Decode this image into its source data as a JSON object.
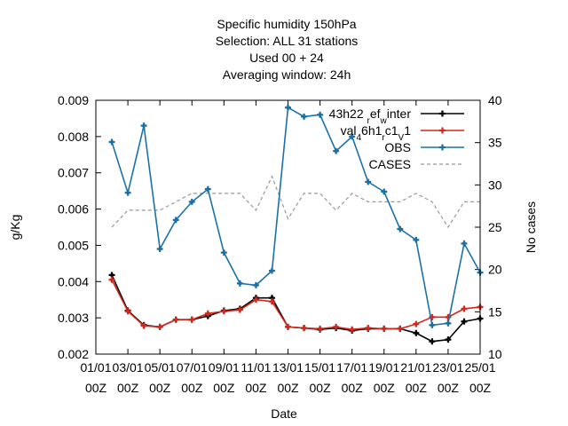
{
  "chart_data": {
    "type": "line",
    "title_lines": [
      "Specific humidity 150hPa",
      "Selection: ALL      31 stations",
      "Used  00  + 24",
      "Averaging window: 24h"
    ],
    "xlabel": "Date",
    "ylabel": "g/Kg",
    "y2label": "No cases",
    "ylim": [
      0.002,
      0.009
    ],
    "y2lim": [
      10,
      40
    ],
    "yticks": [
      "0.002",
      "0.003",
      "0.004",
      "0.005",
      "0.006",
      "0.007",
      "0.008",
      "0.009"
    ],
    "y2ticks": [
      "10",
      "15",
      "20",
      "25",
      "30",
      "35",
      "40"
    ],
    "xlim": [
      0,
      24
    ],
    "xticks": [
      {
        "x": 0,
        "line1": "01/01",
        "line2": "00Z"
      },
      {
        "x": 2,
        "line1": "03/01",
        "line2": "00Z"
      },
      {
        "x": 4,
        "line1": "05/01",
        "line2": "00Z"
      },
      {
        "x": 6,
        "line1": "07/01",
        "line2": "00Z"
      },
      {
        "x": 8,
        "line1": "09/01",
        "line2": "00Z"
      },
      {
        "x": 10,
        "line1": "11/01",
        "line2": "00Z"
      },
      {
        "x": 12,
        "line1": "13/01",
        "line2": "00Z"
      },
      {
        "x": 14,
        "line1": "15/01",
        "line2": "00Z"
      },
      {
        "x": 16,
        "line1": "17/01",
        "line2": "00Z"
      },
      {
        "x": 18,
        "line1": "19/01",
        "line2": "00Z"
      },
      {
        "x": 20,
        "line1": "21/01",
        "line2": "00Z"
      },
      {
        "x": 22,
        "line1": "23/01",
        "line2": "00Z"
      },
      {
        "x": 24,
        "line1": "25/01",
        "line2": "00Z"
      }
    ],
    "legend_position": "top-right",
    "series": [
      {
        "name": "43h22 r ef w inter",
        "legend_parts": [
          [
            "43h22 ",
            ""
          ],
          [
            "r",
            "sub"
          ],
          [
            "ef",
            ""
          ],
          [
            "w",
            "sub"
          ],
          [
            "inter",
            ""
          ]
        ],
        "color": "#000000",
        "marker": "plus",
        "axis": "y",
        "x": [
          1,
          2,
          3,
          4,
          5,
          6,
          7,
          8,
          9,
          10,
          11,
          12,
          13,
          14,
          15,
          16,
          17,
          18,
          19,
          20,
          21,
          22,
          23,
          24
        ],
        "values": [
          0.00418,
          0.0032,
          0.0028,
          0.00275,
          0.00295,
          0.00295,
          0.00305,
          0.0032,
          0.00325,
          0.00355,
          0.00355,
          0.00275,
          0.00272,
          0.00268,
          0.00272,
          0.00265,
          0.0027,
          0.0027,
          0.0027,
          0.00258,
          0.00235,
          0.0024,
          0.0029,
          0.00298
        ]
      },
      {
        "name": "val 4 6h1 r c1 V 1",
        "legend_parts": [
          [
            "val",
            ""
          ],
          [
            "4",
            "sub"
          ],
          [
            "6h1",
            ""
          ],
          [
            "r",
            "sub"
          ],
          [
            "c1",
            ""
          ],
          [
            "V",
            "sub"
          ],
          [
            "1",
            ""
          ]
        ],
        "color": "#d4281c",
        "marker": "plus",
        "axis": "y",
        "x": [
          1,
          2,
          3,
          4,
          5,
          6,
          7,
          8,
          9,
          10,
          11,
          12,
          13,
          14,
          15,
          16,
          17,
          18,
          19,
          20,
          21,
          22,
          23,
          24
        ],
        "values": [
          0.00405,
          0.00318,
          0.00278,
          0.00275,
          0.00295,
          0.00295,
          0.00312,
          0.00318,
          0.00322,
          0.0035,
          0.00345,
          0.00275,
          0.00272,
          0.0027,
          0.00275,
          0.00268,
          0.00272,
          0.0027,
          0.0027,
          0.00283,
          0.00302,
          0.00302,
          0.00325,
          0.0033
        ]
      },
      {
        "name": "OBS",
        "legend_parts": [
          [
            "OBS",
            ""
          ]
        ],
        "color": "#1a71a8",
        "marker": "plus",
        "axis": "y",
        "x": [
          1,
          2,
          3,
          4,
          5,
          6,
          7,
          8,
          9,
          10,
          11,
          12,
          13,
          14,
          15,
          16,
          17,
          18,
          19,
          20,
          21,
          22,
          23,
          24
        ],
        "values": [
          0.00785,
          0.00645,
          0.0083,
          0.0049,
          0.0057,
          0.0062,
          0.00655,
          0.0048,
          0.00395,
          0.0039,
          0.0043,
          0.0088,
          0.00855,
          0.0086,
          0.0076,
          0.008,
          0.00675,
          0.00648,
          0.00545,
          0.00515,
          0.0028,
          0.00285,
          0.00505,
          0.00425
        ]
      },
      {
        "name": "CASES",
        "legend_parts": [
          [
            "CASES",
            ""
          ]
        ],
        "color": "#999999",
        "dashed": true,
        "axis": "y2",
        "x": [
          1,
          2,
          3,
          4,
          5,
          6,
          7,
          8,
          9,
          10,
          11,
          12,
          13,
          14,
          15,
          16,
          17,
          18,
          19,
          20,
          21,
          22,
          23,
          24
        ],
        "values": [
          25,
          27,
          27,
          27,
          28,
          29,
          29,
          29,
          29,
          27,
          31,
          26,
          29,
          29,
          27,
          29,
          28,
          28,
          28,
          29,
          28,
          25,
          28,
          28
        ]
      }
    ]
  }
}
